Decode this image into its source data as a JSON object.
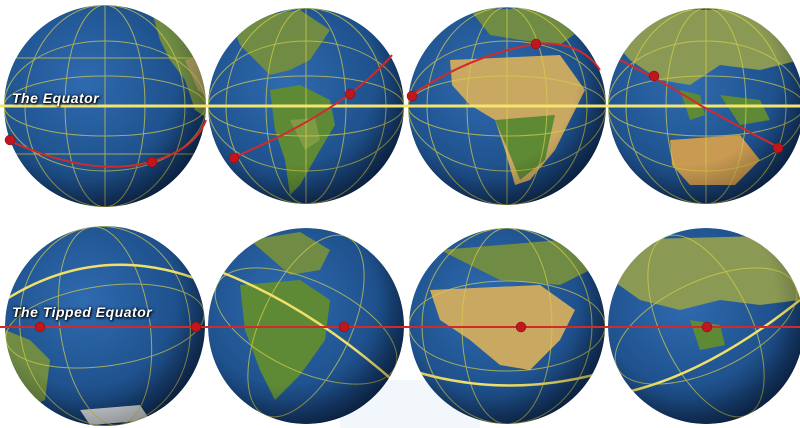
{
  "captions": {
    "top": "The Equator",
    "bottom": "The Tipped Equator"
  },
  "colors": {
    "ocean": "#1d4f8a",
    "ocean_dark": "#0e2a55",
    "land": "#6b8f3a",
    "desert": "#c9a862",
    "grid_line": "#d9d14a",
    "equator_line": "#f0e06a",
    "path_line": "#d02a2a",
    "marker": "#c0161c"
  },
  "globe_icons": [
    "pacific-globe-icon",
    "americas-globe-icon",
    "africa-europe-globe-icon",
    "asia-australia-globe-icon"
  ]
}
